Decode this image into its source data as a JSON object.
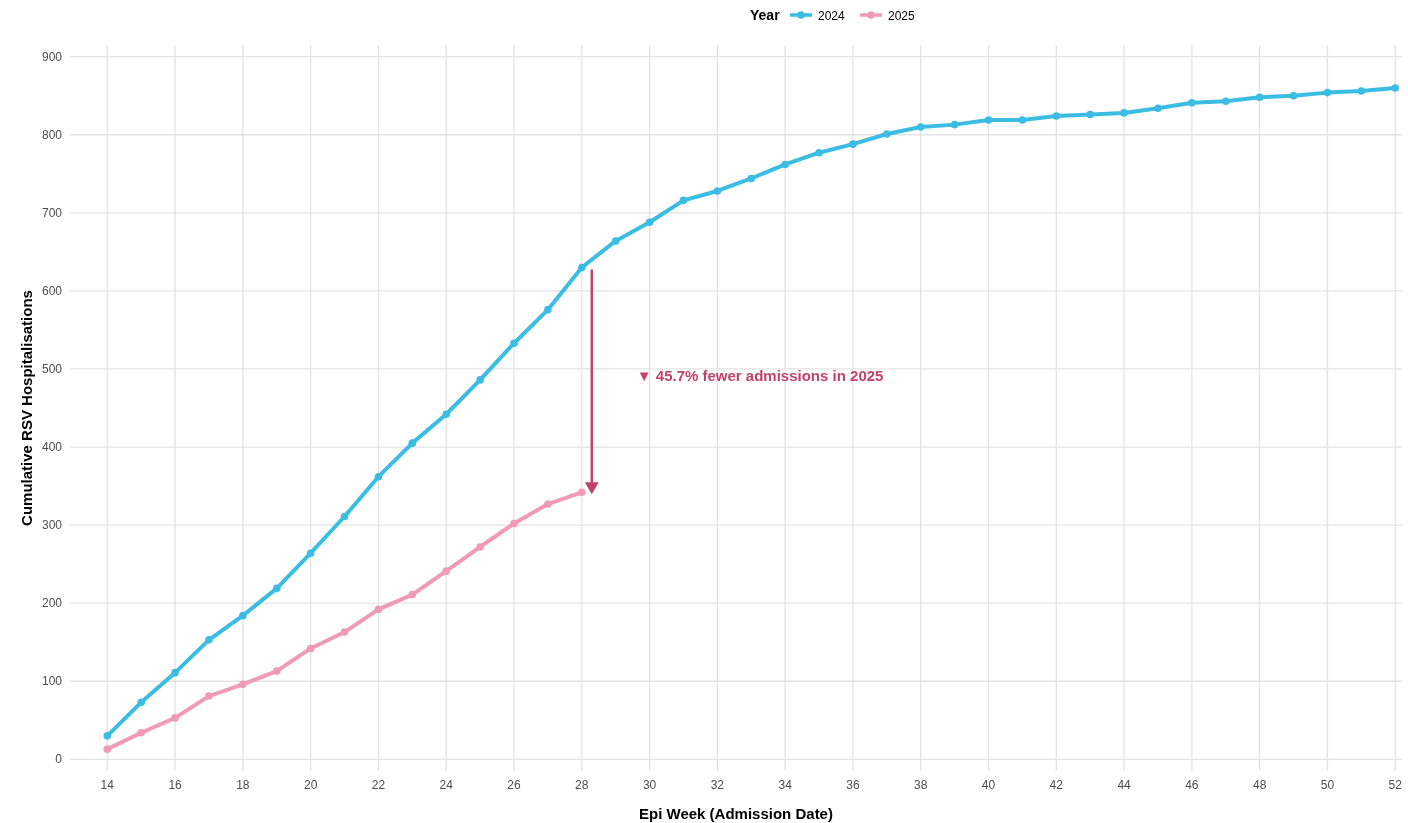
{
  "chart_data": {
    "type": "line",
    "xlabel": "Epi Week (Admission Date)",
    "ylabel": "Cumulative RSV Hospitalisations",
    "legend_title": "Year",
    "legend": "top",
    "grid": true,
    "marker": "circle",
    "line_style": "solid",
    "xlim": [
      12.9,
      52.2
    ],
    "xticks": [
      14,
      16,
      18,
      20,
      22,
      24,
      26,
      28,
      30,
      32,
      34,
      36,
      38,
      40,
      42,
      44,
      46,
      48,
      50,
      52
    ],
    "ylim": [
      -15,
      915
    ],
    "yticks": [
      0,
      100,
      200,
      300,
      400,
      500,
      600,
      700,
      800,
      900
    ],
    "series": [
      {
        "name": "2024",
        "color": "#3bbde3",
        "x": [
          14,
          15,
          16,
          17,
          18,
          19,
          20,
          21,
          22,
          23,
          24,
          25,
          26,
          27,
          28,
          29,
          30,
          31,
          32,
          33,
          34,
          35,
          36,
          37,
          38,
          39,
          40,
          41,
          42,
          43,
          44,
          45,
          46,
          47,
          48,
          49,
          50,
          51,
          52
        ],
        "values": [
          30,
          73,
          111,
          153,
          184,
          219,
          264,
          311,
          362,
          405,
          442,
          486,
          533,
          576,
          630,
          664,
          688,
          716,
          728,
          744,
          762,
          777,
          788,
          801,
          810,
          813,
          819,
          819,
          824,
          826,
          828,
          834,
          841,
          843,
          848,
          850,
          854,
          856,
          860
        ]
      },
      {
        "name": "2025",
        "color": "#f09ab8",
        "x": [
          14,
          15,
          16,
          17,
          18,
          19,
          20,
          21,
          22,
          23,
          24,
          25,
          26,
          27,
          28
        ],
        "values": [
          13,
          34,
          53,
          81,
          96,
          113,
          142,
          163,
          192,
          211,
          241,
          272,
          302,
          327,
          342
        ]
      }
    ],
    "annotations": [
      "▼ 45.7% fewer admissions in 2025"
    ]
  }
}
